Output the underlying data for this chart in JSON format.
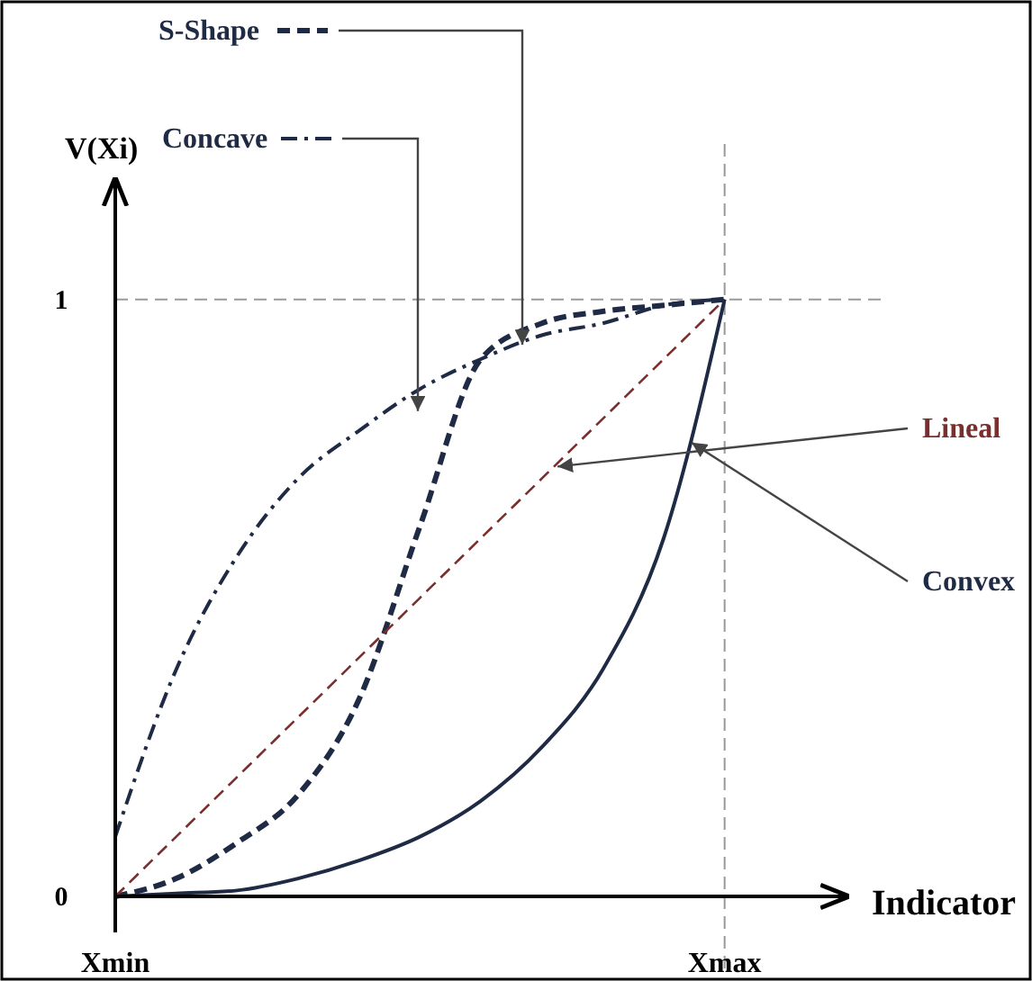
{
  "chart_data": {
    "type": "line",
    "ylabel": "V(Xi)",
    "xlabel": "Indicator",
    "ylim": [
      0,
      1.2
    ],
    "yticks": [
      0,
      1
    ],
    "grid": false,
    "legend": "top left",
    "marker": "none",
    "categories": [
      "Xmin",
      null,
      null,
      null,
      null,
      null,
      null,
      null,
      null,
      null,
      "Xmax",
      null,
      null
    ],
    "ref_lines": [
      {
        "axis": "y",
        "value": 1,
        "line_style": "dashed",
        "color": "#999999"
      },
      {
        "axis": "x",
        "value": "Xmax",
        "line_style": "dashed",
        "color": "#999999"
      }
    ],
    "series": [
      {
        "name": "S-Shape",
        "color": "#1f2a44",
        "line_style": "dashed",
        "values": [
          0,
          0.03,
          0.09,
          0.17,
          0.33,
          0.62,
          0.9,
          0.96,
          0.98,
          0.99,
          1,
          null,
          null
        ]
      },
      {
        "name": "Concave",
        "color": "#1f2a44",
        "line_style": "dotted",
        "values": [
          0.1,
          0.38,
          0.57,
          0.7,
          0.78,
          0.85,
          0.9,
          0.94,
          0.96,
          0.99,
          1,
          null,
          null
        ]
      },
      {
        "name": "Lineal",
        "color": "#7a2e2e",
        "line_style": "dashed",
        "values": [
          0,
          0.1,
          0.2,
          0.3,
          0.4,
          0.5,
          0.6,
          0.7,
          0.8,
          0.9,
          1,
          null,
          null
        ]
      },
      {
        "name": "Convex",
        "color": "#1f2a44",
        "line_style": "solid",
        "values": [
          0,
          0.005,
          0.01,
          0.03,
          0.06,
          0.1,
          0.16,
          0.25,
          0.38,
          0.6,
          1,
          null,
          null
        ]
      }
    ]
  }
}
